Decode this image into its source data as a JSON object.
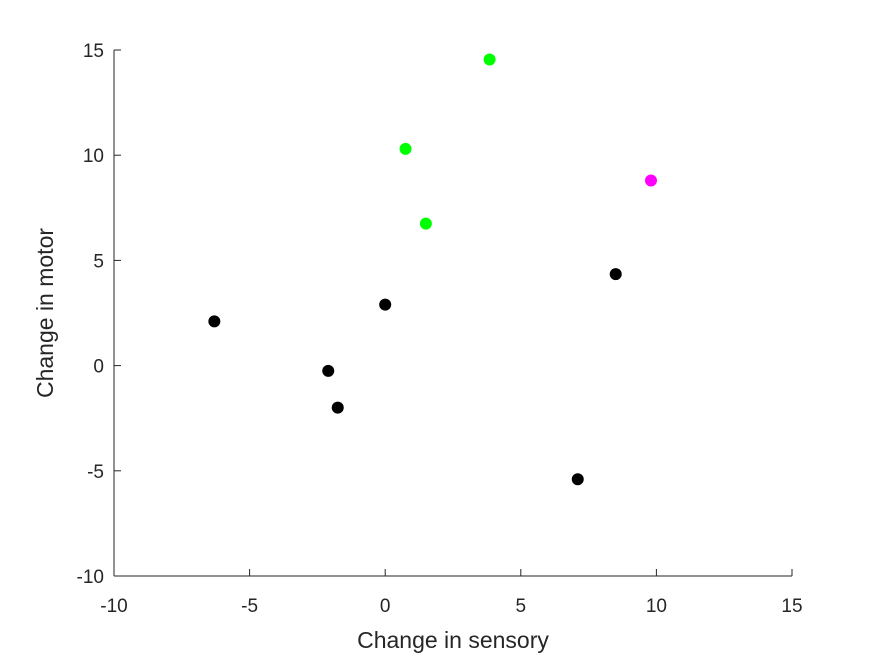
{
  "chart_data": {
    "type": "scatter",
    "title": "",
    "xlabel": "Change in sensory",
    "ylabel": "Change in motor",
    "xlim": [
      -10,
      15
    ],
    "ylim": [
      -10,
      15
    ],
    "xticks": [
      -10,
      -5,
      0,
      5,
      10,
      15
    ],
    "yticks": [
      -10,
      -5,
      0,
      5,
      10,
      15
    ],
    "grid": false,
    "legend": "none",
    "series": [
      {
        "color": "#000000",
        "points": [
          {
            "x": -6.3,
            "y": 2.1
          },
          {
            "x": -2.1,
            "y": -0.25
          },
          {
            "x": -1.75,
            "y": -2.0
          },
          {
            "x": 0.0,
            "y": 2.9
          },
          {
            "x": 7.1,
            "y": -5.4
          },
          {
            "x": 8.5,
            "y": 4.35
          }
        ]
      },
      {
        "color": "#00ff00",
        "points": [
          {
            "x": 0.75,
            "y": 10.3
          },
          {
            "x": 1.5,
            "y": 6.75
          },
          {
            "x": 3.85,
            "y": 14.55
          }
        ]
      },
      {
        "color": "#ff00ff",
        "points": [
          {
            "x": 9.8,
            "y": 8.8
          }
        ]
      }
    ]
  }
}
